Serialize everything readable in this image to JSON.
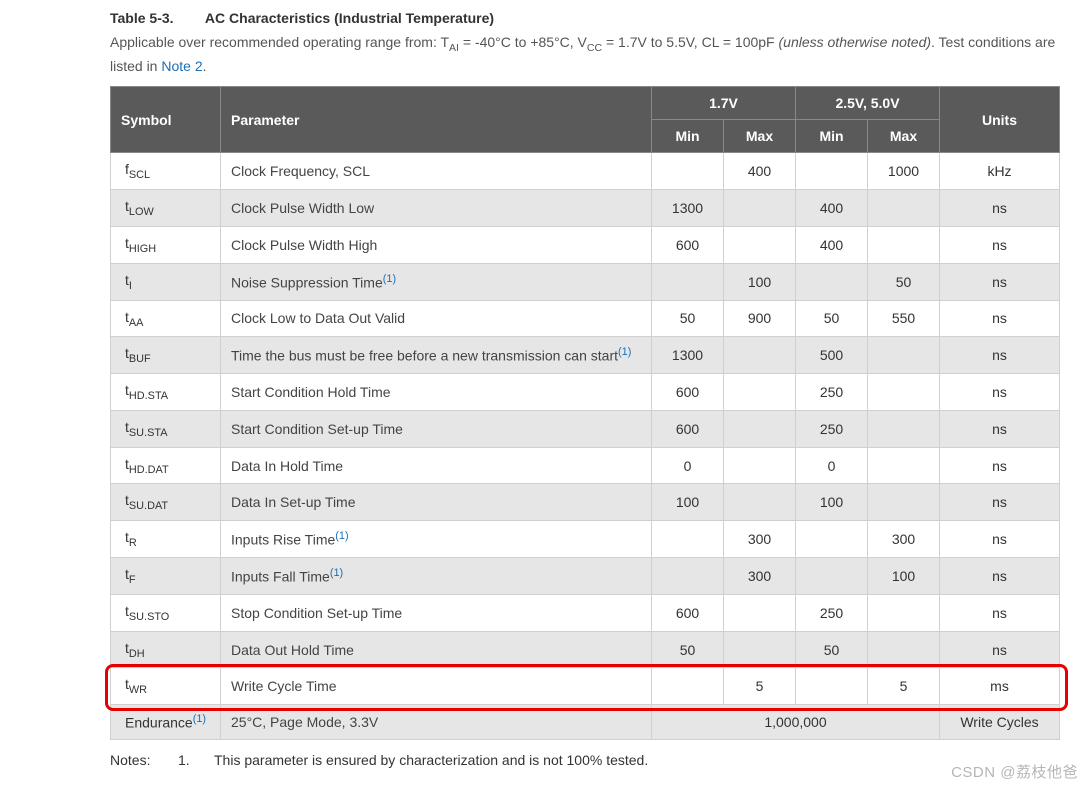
{
  "title": {
    "number": "Table 5-3.",
    "text": "AC Characteristics (Industrial Temperature)"
  },
  "caption": {
    "prefix": "Applicable over recommended operating range from: T",
    "sub1": "AI",
    "mid1": " = -40°C to +85°C, V",
    "sub2": "CC",
    "mid2": " = 1.7V to 5.5V, CL = 100pF ",
    "ital": "(unless otherwise noted)",
    "tail": ". Test conditions are listed in ",
    "link": "Note 2",
    "period": "."
  },
  "headers": {
    "symbol": "Symbol",
    "parameter": "Parameter",
    "v1": "1.7V",
    "v2": "2.5V, 5.0V",
    "min": "Min",
    "max": "Max",
    "units": "Units"
  },
  "col_widths": {
    "symbol": "110px",
    "parameter": "auto",
    "num": "72px",
    "units": "120px"
  },
  "colors": {
    "header_bg": "#5a5a5a",
    "header_fg": "#ffffff",
    "row_odd": "#ffffff",
    "row_even": "#e6e6e6",
    "border": "#d0d0d0",
    "link": "#1a6fb5",
    "highlight_border": "#e60000"
  },
  "rows": [
    {
      "sym_main": "f",
      "sym_sub": "SCL",
      "param": "Clock Frequency, SCL",
      "note": "",
      "min1": "",
      "max1": "400",
      "min2": "",
      "max2": "1000",
      "unit": "kHz"
    },
    {
      "sym_main": "t",
      "sym_sub": "LOW",
      "param": "Clock Pulse Width Low",
      "note": "",
      "min1": "1300",
      "max1": "",
      "min2": "400",
      "max2": "",
      "unit": "ns"
    },
    {
      "sym_main": "t",
      "sym_sub": "HIGH",
      "param": "Clock Pulse Width High",
      "note": "",
      "min1": "600",
      "max1": "",
      "min2": "400",
      "max2": "",
      "unit": "ns"
    },
    {
      "sym_main": "t",
      "sym_sub": "I",
      "param": "Noise Suppression Time",
      "note": "(1)",
      "min1": "",
      "max1": "100",
      "min2": "",
      "max2": "50",
      "unit": "ns"
    },
    {
      "sym_main": "t",
      "sym_sub": "AA",
      "param": "Clock Low to Data Out Valid",
      "note": "",
      "min1": "50",
      "max1": "900",
      "min2": "50",
      "max2": "550",
      "unit": "ns"
    },
    {
      "sym_main": "t",
      "sym_sub": "BUF",
      "param": "Time the bus must be free before a new transmission can start",
      "note": "(1)",
      "min1": "1300",
      "max1": "",
      "min2": "500",
      "max2": "",
      "unit": "ns"
    },
    {
      "sym_main": "t",
      "sym_sub": "HD.STA",
      "param": "Start Condition Hold Time",
      "note": "",
      "min1": "600",
      "max1": "",
      "min2": "250",
      "max2": "",
      "unit": "ns"
    },
    {
      "sym_main": "t",
      "sym_sub": "SU.STA",
      "param": "Start Condition Set-up Time",
      "note": "",
      "min1": "600",
      "max1": "",
      "min2": "250",
      "max2": "",
      "unit": "ns"
    },
    {
      "sym_main": "t",
      "sym_sub": "HD.DAT",
      "param": "Data In Hold Time",
      "note": "",
      "min1": "0",
      "max1": "",
      "min2": "0",
      "max2": "",
      "unit": "ns"
    },
    {
      "sym_main": "t",
      "sym_sub": "SU.DAT",
      "param": "Data In Set-up Time",
      "note": "",
      "min1": "100",
      "max1": "",
      "min2": "100",
      "max2": "",
      "unit": "ns"
    },
    {
      "sym_main": "t",
      "sym_sub": "R",
      "param": "Inputs Rise Time",
      "note": "(1)",
      "min1": "",
      "max1": "300",
      "min2": "",
      "max2": "300",
      "unit": "ns"
    },
    {
      "sym_main": "t",
      "sym_sub": "F",
      "param": "Inputs Fall Time",
      "note": "(1)",
      "min1": "",
      "max1": "300",
      "min2": "",
      "max2": "100",
      "unit": "ns"
    },
    {
      "sym_main": "t",
      "sym_sub": "SU.STO",
      "param": "Stop Condition Set-up Time",
      "note": "",
      "min1": "600",
      "max1": "",
      "min2": "250",
      "max2": "",
      "unit": "ns"
    },
    {
      "sym_main": "t",
      "sym_sub": "DH",
      "param": "Data Out Hold Time",
      "note": "",
      "min1": "50",
      "max1": "",
      "min2": "50",
      "max2": "",
      "unit": "ns"
    },
    {
      "sym_main": "t",
      "sym_sub": "WR",
      "param": "Write Cycle Time",
      "note": "",
      "min1": "",
      "max1": "5",
      "min2": "",
      "max2": "5",
      "unit": "ms",
      "highlight": true
    }
  ],
  "endurance_row": {
    "sym_text": "Endurance",
    "sym_note": "(1)",
    "param": "25°C, Page Mode, 3.3V",
    "value": "1,000,000",
    "unit": "Write Cycles"
  },
  "notes": {
    "label": "Notes:",
    "index": "1.",
    "text": "This parameter is ensured by characterization and is not 100% tested."
  },
  "watermark": "CSDN @荔枝他爸"
}
